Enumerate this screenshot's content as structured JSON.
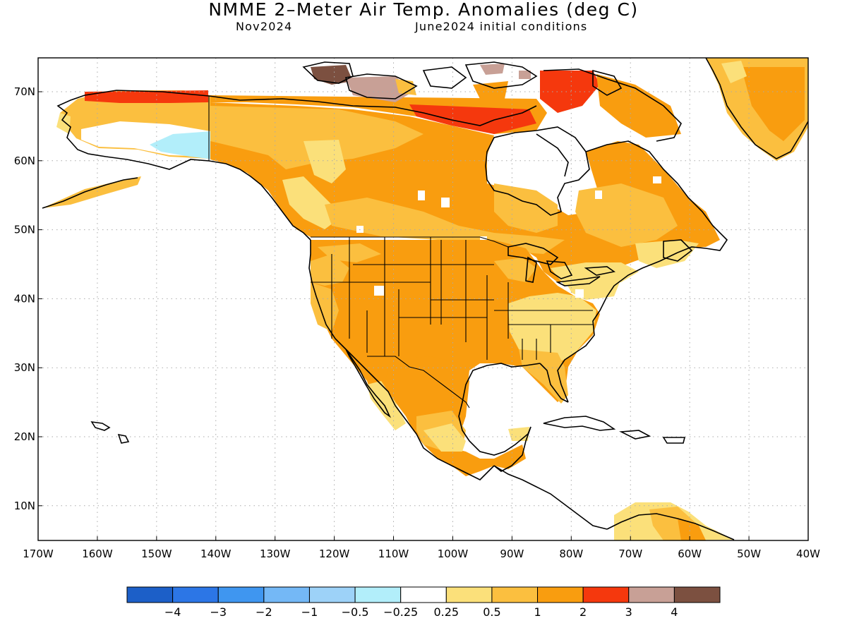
{
  "title": "NMME 2–Meter Air Temp. Anomalies (deg C)",
  "subtitle_left": "Nov2024",
  "subtitle_right": "June2024 initial conditions",
  "lon_ticks": [
    "170W",
    "160W",
    "150W",
    "140W",
    "130W",
    "120W",
    "110W",
    "100W",
    "90W",
    "80W",
    "70W",
    "60W",
    "50W",
    "40W"
  ],
  "lat_ticks": [
    "70N",
    "60N",
    "50N",
    "40N",
    "30N",
    "20N",
    "10N"
  ],
  "colorbar": {
    "colors": [
      "#1c5fc8",
      "#2c76e6",
      "#3f96f0",
      "#74b8f6",
      "#9dd2f8",
      "#b2eefa",
      "#ffffff",
      "#fbe07a",
      "#fbbf3f",
      "#f99d0f",
      "#f5380d",
      "#c8a096",
      "#7c5040"
    ],
    "labels": [
      "−4",
      "−3",
      "−2",
      "−1",
      "−0.5",
      "−0.25",
      "0.25",
      "0.5",
      "1",
      "2",
      "3",
      "4"
    ]
  }
}
